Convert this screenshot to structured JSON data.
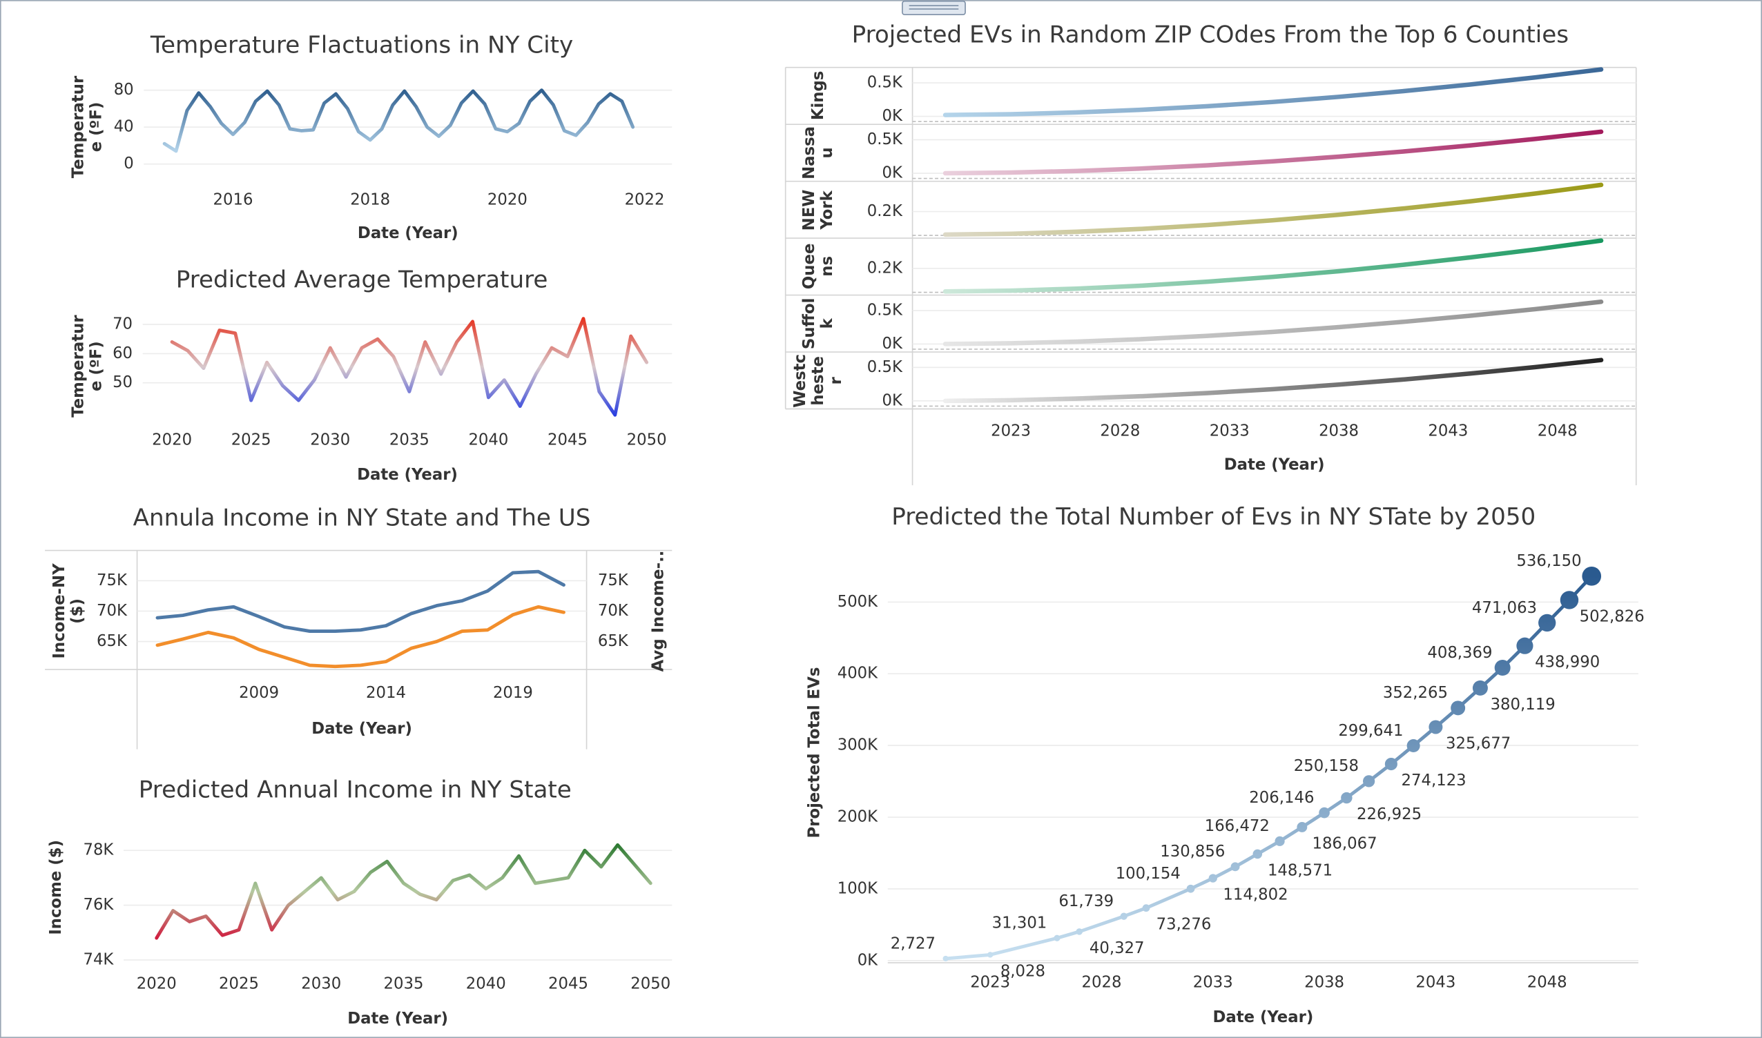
{
  "chart_data": [
    {
      "type": "line",
      "title": "Temperature Flactuations in NY City",
      "xlabel": "Date (Year)",
      "ylabel": "Temperature (ºF)",
      "x": [
        2015.0,
        2015.17,
        2015.33,
        2015.5,
        2015.67,
        2015.83,
        2016.0,
        2016.17,
        2016.33,
        2016.5,
        2016.67,
        2016.83,
        2017.0,
        2017.17,
        2017.33,
        2017.5,
        2017.67,
        2017.83,
        2018.0,
        2018.17,
        2018.33,
        2018.5,
        2018.67,
        2018.83,
        2019.0,
        2019.17,
        2019.33,
        2019.5,
        2019.67,
        2019.83,
        2020.0,
        2020.17,
        2020.33,
        2020.5,
        2020.67,
        2020.83,
        2021.0,
        2021.17,
        2021.33,
        2021.5,
        2021.67,
        2021.83
      ],
      "values": [
        22,
        14,
        58,
        77,
        62,
        44,
        32,
        45,
        68,
        79,
        64,
        38,
        36,
        37,
        66,
        76,
        60,
        35,
        26,
        38,
        64,
        79,
        62,
        40,
        30,
        42,
        66,
        79,
        65,
        38,
        35,
        44,
        68,
        80,
        64,
        36,
        31,
        45,
        65,
        76,
        68,
        40
      ],
      "color_range": [
        "#b3d3ea",
        "#2e5e8e"
      ],
      "xlim": [
        2014.7,
        2022.4
      ],
      "xticks": [
        2016,
        2018,
        2020,
        2022
      ],
      "ylim": [
        -11,
        90
      ],
      "yticks": [
        0,
        40,
        80
      ],
      "grid": true
    },
    {
      "type": "line",
      "title": "Predicted Average Temperature",
      "xlabel": "Date (Year)",
      "ylabel": "Temperature (ºF)",
      "x": [
        2020,
        2021,
        2022,
        2023,
        2024,
        2025,
        2026,
        2027,
        2028,
        2029,
        2030,
        2031,
        2032,
        2033,
        2034,
        2035,
        2036,
        2037,
        2038,
        2039,
        2040,
        2041,
        2042,
        2043,
        2044,
        2045,
        2046,
        2047,
        2048,
        2049,
        2050
      ],
      "values": [
        64,
        61,
        55,
        68,
        67,
        44,
        57,
        49,
        44,
        51,
        62,
        52,
        62,
        65,
        59,
        47,
        64,
        53,
        64,
        71,
        45,
        51,
        42,
        53,
        62,
        59,
        72,
        47,
        39,
        66,
        57
      ],
      "color_range": [
        "#2a3fe0",
        "#d8c8cc",
        "#e63320"
      ],
      "xlim": [
        2018.15,
        2051.6
      ],
      "xticks": [
        2020,
        2025,
        2030,
        2035,
        2040,
        2045,
        2050
      ],
      "ylim": [
        38,
        73
      ],
      "yticks": [
        50,
        60,
        70
      ],
      "grid": true
    },
    {
      "type": "line",
      "title": "Annula Income in NY State and The US",
      "xlabel": "Date (Year)",
      "ylabel": "Income-NY ($)",
      "y2label": "Avg Income-..",
      "x": [
        2005,
        2006,
        2007,
        2008,
        2009,
        2010,
        2011,
        2012,
        2013,
        2014,
        2015,
        2016,
        2017,
        2018,
        2019,
        2020,
        2021
      ],
      "series": [
        {
          "color": "#4e79a7",
          "values": [
            68900,
            69300,
            70200,
            70700,
            69100,
            67400,
            66700,
            66700,
            66900,
            67600,
            69600,
            70900,
            71700,
            73300,
            76300,
            76500,
            74300
          ]
        },
        {
          "color": "#f28e2b",
          "axis": "y2",
          "values": [
            64400,
            65400,
            66500,
            65600,
            63700,
            62400,
            61100,
            60900,
            61100,
            61700,
            63900,
            65000,
            66700,
            66900,
            69400,
            70700,
            69800
          ]
        }
      ],
      "xlim": [
        2004.2,
        2021.9
      ],
      "xticks": [
        2009,
        2014,
        2019
      ],
      "ylim": [
        60400,
        79600
      ],
      "yticks": [
        {
          "value": 65000,
          "label": "65K"
        },
        {
          "value": 70000,
          "label": "70K"
        },
        {
          "value": 75000,
          "label": "75K"
        }
      ],
      "y2lim": [
        60400,
        79600
      ],
      "y2ticks": [
        {
          "value": 65000,
          "label": "65K"
        },
        {
          "value": 70000,
          "label": "70K"
        },
        {
          "value": 75000,
          "label": "75K"
        }
      ],
      "grid": true
    },
    {
      "type": "line",
      "title": "Predicted Annual Income in NY State",
      "xlabel": "Date (Year)",
      "ylabel": "Income ($)",
      "x": [
        2020,
        2021,
        2022,
        2023,
        2024,
        2025,
        2026,
        2027,
        2028,
        2029,
        2030,
        2031,
        2032,
        2033,
        2034,
        2035,
        2036,
        2037,
        2038,
        2039,
        2040,
        2041,
        2042,
        2043,
        2044,
        2045,
        2046,
        2047,
        2048,
        2049,
        2050
      ],
      "values": [
        74800,
        75800,
        75400,
        75600,
        74900,
        75100,
        76800,
        75100,
        76000,
        76500,
        77000,
        76200,
        76500,
        77200,
        77600,
        76800,
        76400,
        76200,
        76900,
        77100,
        76600,
        77000,
        77800,
        76800,
        76900,
        77000,
        78000,
        77400,
        78200,
        77500,
        76800
      ],
      "color_range": [
        "#d01d3f",
        "#b5c9a0",
        "#2d7a32"
      ],
      "xlim": [
        2018.0,
        2051.3
      ],
      "xticks": [
        2020,
        2025,
        2030,
        2035,
        2040,
        2045,
        2050
      ],
      "ylim": [
        73900,
        78700
      ],
      "yticks": [
        {
          "value": 74000,
          "label": "74K"
        },
        {
          "value": 76000,
          "label": "76K"
        },
        {
          "value": 78000,
          "label": "78K"
        }
      ],
      "grid": true
    },
    {
      "type": "small_multiples",
      "title": "Projected EVs in Random ZIP COdes From the Top 6 Counties",
      "xlabel": "Date (Year)",
      "x": [
        2020,
        2023,
        2026,
        2029,
        2032,
        2035,
        2038,
        2041,
        2044,
        2047,
        2050
      ],
      "series": [
        {
          "name": "Kings",
          "colors": [
            "#b4d4ea",
            "#3a6797"
          ],
          "values": [
            20,
            31,
            58,
            98,
            151,
            215,
            291,
            378,
            475,
            582,
            700
          ],
          "ylim": [
            -120,
            730
          ],
          "yticks": [
            {
              "value": 0,
              "label": "0K"
            },
            {
              "value": 500,
              "label": "0.5K"
            }
          ]
        },
        {
          "name": "Nassau",
          "colors": [
            "#ead0dd",
            "#a31a5c"
          ],
          "values": [
            0,
            10,
            34,
            71,
            119,
            178,
            247,
            326,
            415,
            513,
            620
          ],
          "ylim": [
            -120,
            730
          ],
          "yticks": [
            {
              "value": 0,
              "label": "0K"
            },
            {
              "value": 500,
              "label": "0.5K"
            }
          ]
        },
        {
          "name": "NEW York",
          "colors": [
            "#dcd8c6",
            "#9b9a16"
          ],
          "values": [
            10,
            16,
            33,
            57,
            89,
            128,
            174,
            226,
            284,
            349,
            420
          ],
          "ylim": [
            -20,
            450
          ],
          "yticks": [
            {
              "value": 200,
              "label": "0.2K"
            }
          ]
        },
        {
          "name": "Queens",
          "colors": [
            "#cde8da",
            "#18985f"
          ],
          "values": [
            10,
            17,
            33,
            58,
            91,
            131,
            177,
            231,
            291,
            357,
            430
          ],
          "ylim": [
            -20,
            450
          ],
          "yticks": [
            {
              "value": 200,
              "label": "0.2K"
            }
          ]
        },
        {
          "name": "Suffolk",
          "colors": [
            "#e6e6e6",
            "#8a8a8a"
          ],
          "values": [
            0,
            10,
            35,
            72,
            121,
            181,
            251,
            332,
            422,
            521,
            630
          ],
          "ylim": [
            -120,
            730
          ],
          "yticks": [
            {
              "value": 0,
              "label": "0K"
            },
            {
              "value": 500,
              "label": "0.5K"
            }
          ]
        },
        {
          "name": "Westchester",
          "colors": [
            "#eeeeee",
            "#222222"
          ],
          "values": [
            0,
            10,
            34,
            70,
            117,
            175,
            243,
            321,
            408,
            505,
            610
          ],
          "ylim": [
            -120,
            730
          ],
          "yticks": [
            {
              "value": 0,
              "label": "0K"
            },
            {
              "value": 500,
              "label": "0.5K"
            }
          ]
        }
      ],
      "xlim": [
        2018.5,
        2051.6
      ],
      "xticks": [
        2023,
        2028,
        2033,
        2038,
        2043,
        2048
      ],
      "grid": true
    },
    {
      "type": "line",
      "title": "Predicted the Total Number of Evs in NY STate by 2050",
      "xlabel": "Date (Year)",
      "ylabel": "Projected Total EVs",
      "x": [
        2021,
        2023,
        2026,
        2027,
        2029,
        2030,
        2032,
        2033,
        2034,
        2035,
        2036,
        2037,
        2038,
        2039,
        2040,
        2041,
        2042,
        2043,
        2044,
        2045,
        2046,
        2047,
        2048,
        2049,
        2050
      ],
      "values": [
        2727,
        8028,
        31301,
        40327,
        61739,
        73276,
        100154,
        114802,
        130856,
        148571,
        166472,
        186067,
        206146,
        226925,
        250158,
        274123,
        299641,
        325677,
        352265,
        380119,
        408369,
        438990,
        471063,
        502826,
        536150
      ],
      "value_labels": [
        "2,727",
        "8,028",
        "31,301",
        "40,327",
        "61,739",
        "73,276",
        "100,154",
        "114,802",
        "130,856",
        "148,571",
        "166,472",
        "186,067",
        "206,146",
        "226,925",
        "250,158",
        "274,123",
        "299,641",
        "325,677",
        "352,265",
        "380,119",
        "408,369",
        "438,990",
        "471,063",
        "502,826",
        "536,150"
      ],
      "markers": true,
      "color_range": [
        "#c6dff0",
        "#2a5a8f"
      ],
      "xlim": [
        2018.4,
        2052.1
      ],
      "xticks": [
        2023,
        2028,
        2033,
        2038,
        2043,
        2048
      ],
      "ylim": [
        -3000,
        572000
      ],
      "yticks": [
        {
          "value": 0,
          "label": "0K"
        },
        {
          "value": 100000,
          "label": "100K"
        },
        {
          "value": 200000,
          "label": "200K"
        },
        {
          "value": 300000,
          "label": "300K"
        },
        {
          "value": 400000,
          "label": "400K"
        },
        {
          "value": 500000,
          "label": "500K"
        }
      ],
      "grid": true
    }
  ]
}
